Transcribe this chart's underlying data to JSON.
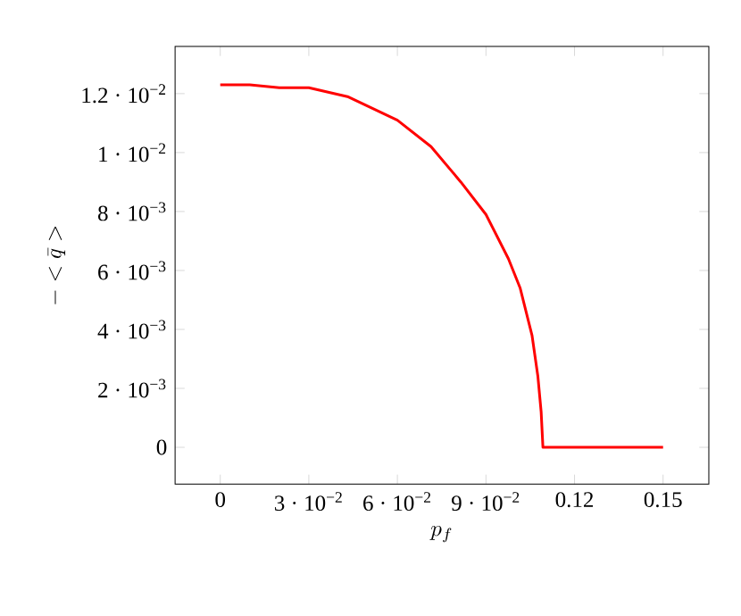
{
  "chart_data": {
    "type": "line",
    "xlabel": "p_f",
    "ylabel": "-<\\bar{q}>",
    "x": [
      0,
      0.01,
      0.02,
      0.03,
      0.0431,
      0.06,
      0.0714,
      0.0815,
      0.09,
      0.0976,
      0.1016,
      0.1056,
      0.1076,
      0.1087,
      0.1093,
      0.12,
      0.13,
      0.14,
      0.15
    ],
    "series": [
      {
        "color": "#ff0000",
        "values": [
          0.0123,
          0.0123,
          0.0122,
          0.0122,
          0.0119,
          0.0111,
          0.0102,
          0.009,
          0.0079,
          0.0064,
          0.0054,
          0.0038,
          0.0024,
          0.0012,
          0,
          0,
          0,
          0,
          0
        ]
      }
    ],
    "xlim": [
      -0.0153,
      0.1655
    ],
    "ylim": [
      -0.00125,
      0.0136
    ],
    "xticks": [
      0,
      {
        "value": 0.03,
        "label": "3 · 10$^{−2}$"
      },
      {
        "value": 0.06,
        "label": "6 · 10$^{−2}$"
      },
      {
        "value": 0.09,
        "label": "9 · 10$^{−2}$"
      },
      0.12,
      0.15
    ],
    "yticks": [
      0,
      {
        "value": 0.002,
        "label": "2 · 10$^{−3}$"
      },
      {
        "value": 0.004,
        "label": "4 · 10$^{−3}$"
      },
      {
        "value": 0.006,
        "label": "6 · 10$^{−3}$"
      },
      {
        "value": 0.008,
        "label": "8 · 10$^{−3}$"
      },
      {
        "value": 0.01,
        "label": "1 · 10$^{−2}$"
      },
      {
        "value": 0.012,
        "label": "1.2 · 10$^{−2}$"
      }
    ],
    "grid": false,
    "marker": "none",
    "line_style": "solid"
  }
}
